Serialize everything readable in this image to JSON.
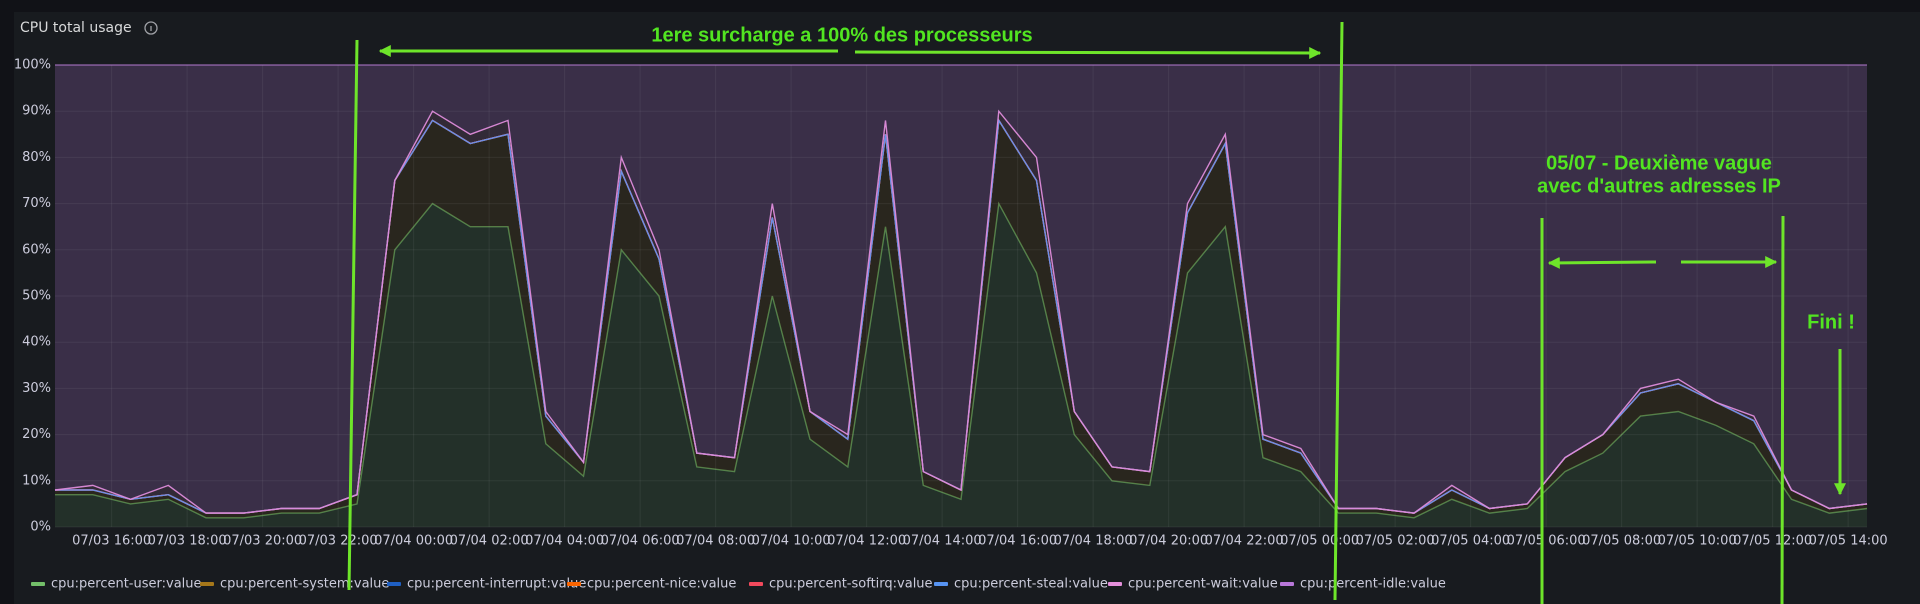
{
  "chart_data": {
    "type": "stacked-area",
    "title": "CPU total usage",
    "x": [
      "07/03 14:30",
      "07/03 15:30",
      "07/03 16:30",
      "07/03 17:30",
      "07/03 18:30",
      "07/03 19:30",
      "07/03 20:30",
      "07/03 21:30",
      "07/03 22:30",
      "07/03 23:30",
      "07/04 00:30",
      "07/04 01:30",
      "07/04 02:30",
      "07/04 03:30",
      "07/04 04:30",
      "07/04 05:30",
      "07/04 06:30",
      "07/04 07:30",
      "07/04 08:30",
      "07/04 09:30",
      "07/04 10:30",
      "07/04 11:30",
      "07/04 12:30",
      "07/04 13:30",
      "07/04 14:30",
      "07/04 15:30",
      "07/04 16:30",
      "07/04 17:30",
      "07/04 18:30",
      "07/04 19:30",
      "07/04 20:30",
      "07/04 21:30",
      "07/04 22:30",
      "07/04 23:30",
      "07/05 00:30",
      "07/05 01:30",
      "07/05 02:30",
      "07/05 03:30",
      "07/05 04:30",
      "07/05 05:30",
      "07/05 06:30",
      "07/05 07:30",
      "07/05 08:30",
      "07/05 09:30",
      "07/05 10:30",
      "07/05 11:30",
      "07/05 12:30",
      "07/05 13:30",
      "07/05 14:30"
    ],
    "series": [
      {
        "name": "cpu:percent-user:value",
        "color": "#73bf69",
        "values": [
          7,
          7,
          5,
          6,
          2,
          2,
          3,
          3,
          5,
          60,
          70,
          65,
          65,
          18,
          11,
          60,
          50,
          13,
          12,
          50,
          19,
          13,
          65,
          9,
          6,
          70,
          55,
          20,
          10,
          9,
          55,
          65,
          15,
          12,
          3,
          3,
          2,
          6,
          3,
          4,
          12,
          16,
          24,
          25,
          22,
          18,
          6,
          3,
          4
        ]
      },
      {
        "name": "cpu:percent-system:value",
        "color": "#a5771a",
        "values": [
          1,
          1,
          1,
          1,
          1,
          1,
          1,
          1,
          2,
          15,
          18,
          18,
          20,
          6,
          3,
          17,
          8,
          3,
          3,
          17,
          6,
          6,
          20,
          3,
          2,
          18,
          20,
          5,
          3,
          3,
          13,
          18,
          4,
          4,
          1,
          1,
          1,
          2,
          1,
          1,
          3,
          4,
          5,
          6,
          5,
          5,
          2,
          1,
          1
        ]
      },
      {
        "name": "cpu:percent-interrupt:value",
        "color": "#1f60c4",
        "values": [
          0,
          0,
          0,
          0,
          0,
          0,
          0,
          0,
          0,
          0,
          0,
          0,
          0,
          0,
          0,
          0,
          0,
          0,
          0,
          0,
          0,
          0,
          0,
          0,
          0,
          0,
          0,
          0,
          0,
          0,
          0,
          0,
          0,
          0,
          0,
          0,
          0,
          0,
          0,
          0,
          0,
          0,
          0,
          0,
          0,
          0,
          0,
          0,
          0
        ]
      },
      {
        "name": "cpu:percent-nice:value",
        "color": "#fa6400",
        "values": [
          0,
          0,
          0,
          0,
          0,
          0,
          0,
          0,
          0,
          0,
          0,
          0,
          0,
          0,
          0,
          0,
          0,
          0,
          0,
          0,
          0,
          0,
          0,
          0,
          0,
          0,
          0,
          0,
          0,
          0,
          0,
          0,
          0,
          0,
          0,
          0,
          0,
          0,
          0,
          0,
          0,
          0,
          0,
          0,
          0,
          0,
          0,
          0,
          0
        ]
      },
      {
        "name": "cpu:percent-softirq:value",
        "color": "#f2495c",
        "values": [
          0,
          0,
          0,
          0,
          0,
          0,
          0,
          0,
          0,
          0,
          0,
          0,
          0,
          0,
          0,
          0,
          0,
          0,
          0,
          0,
          0,
          0,
          0,
          0,
          0,
          0,
          0,
          0,
          0,
          0,
          0,
          0,
          0,
          0,
          0,
          0,
          0,
          0,
          0,
          0,
          0,
          0,
          0,
          0,
          0,
          0,
          0,
          0,
          0
        ]
      },
      {
        "name": "cpu:percent-steal:value",
        "color": "#5794f2",
        "values": [
          0,
          0,
          0,
          0,
          0,
          0,
          0,
          0,
          0,
          0,
          0,
          0,
          0,
          0,
          0,
          0,
          0,
          0,
          0,
          0,
          0,
          0,
          0,
          0,
          0,
          0,
          0,
          0,
          0,
          0,
          0,
          0,
          0,
          0,
          0,
          0,
          0,
          0,
          0,
          0,
          0,
          0,
          0,
          0,
          0,
          0,
          0,
          0,
          0
        ]
      },
      {
        "name": "cpu:percent-wait:value",
        "color": "#e48fdb",
        "values": [
          0,
          1,
          0,
          2,
          0,
          0,
          0,
          0,
          0,
          0,
          2,
          2,
          3,
          1,
          0,
          3,
          2,
          0,
          0,
          3,
          0,
          1,
          3,
          0,
          0,
          2,
          5,
          0,
          0,
          0,
          2,
          2,
          1,
          1,
          0,
          0,
          0,
          1,
          0,
          0,
          0,
          0,
          1,
          1,
          0,
          1,
          0,
          0,
          0
        ]
      },
      {
        "name": "cpu:percent-idle:value",
        "color": "#b877d9",
        "values": [
          92,
          91,
          94,
          91,
          97,
          97,
          96,
          96,
          93,
          25,
          10,
          15,
          12,
          75,
          86,
          20,
          40,
          84,
          85,
          30,
          75,
          80,
          12,
          88,
          92,
          10,
          20,
          75,
          87,
          88,
          30,
          15,
          80,
          83,
          96,
          96,
          97,
          91,
          96,
          95,
          85,
          80,
          70,
          68,
          73,
          76,
          92,
          96,
          95
        ]
      }
    ],
    "xlim": [
      "07/03 14:30",
      "07/05 14:30"
    ],
    "xticks": [
      "07/03 16:00",
      "07/03 18:00",
      "07/03 20:00",
      "07/03 22:00",
      "07/04 00:00",
      "07/04 02:00",
      "07/04 04:00",
      "07/04 06:00",
      "07/04 08:00",
      "07/04 10:00",
      "07/04 12:00",
      "07/04 14:00",
      "07/04 16:00",
      "07/04 18:00",
      "07/04 20:00",
      "07/04 22:00",
      "07/05 00:00",
      "07/05 02:00",
      "07/05 04:00",
      "07/05 06:00",
      "07/05 08:00",
      "07/05 10:00",
      "07/05 12:00",
      "07/05 14:00"
    ],
    "ylim": [
      0,
      100
    ],
    "yticks": [
      {
        "value": 0,
        "label": "0%"
      },
      {
        "value": 10,
        "label": "10%"
      },
      {
        "value": 20,
        "label": "20%"
      },
      {
        "value": 30,
        "label": "30%"
      },
      {
        "value": 40,
        "label": "40%"
      },
      {
        "value": 50,
        "label": "50%"
      },
      {
        "value": 60,
        "label": "60%"
      },
      {
        "value": 70,
        "label": "70%"
      },
      {
        "value": 80,
        "label": "80%"
      },
      {
        "value": 90,
        "label": "90%"
      },
      {
        "value": 100,
        "label": "100%"
      }
    ],
    "grid": true,
    "annotations": [
      "1ere surcharge a 100% des processeurs",
      "05/07 - Deuxième vague",
      "avec d'autres adresses IP",
      "Fini !"
    ]
  }
}
